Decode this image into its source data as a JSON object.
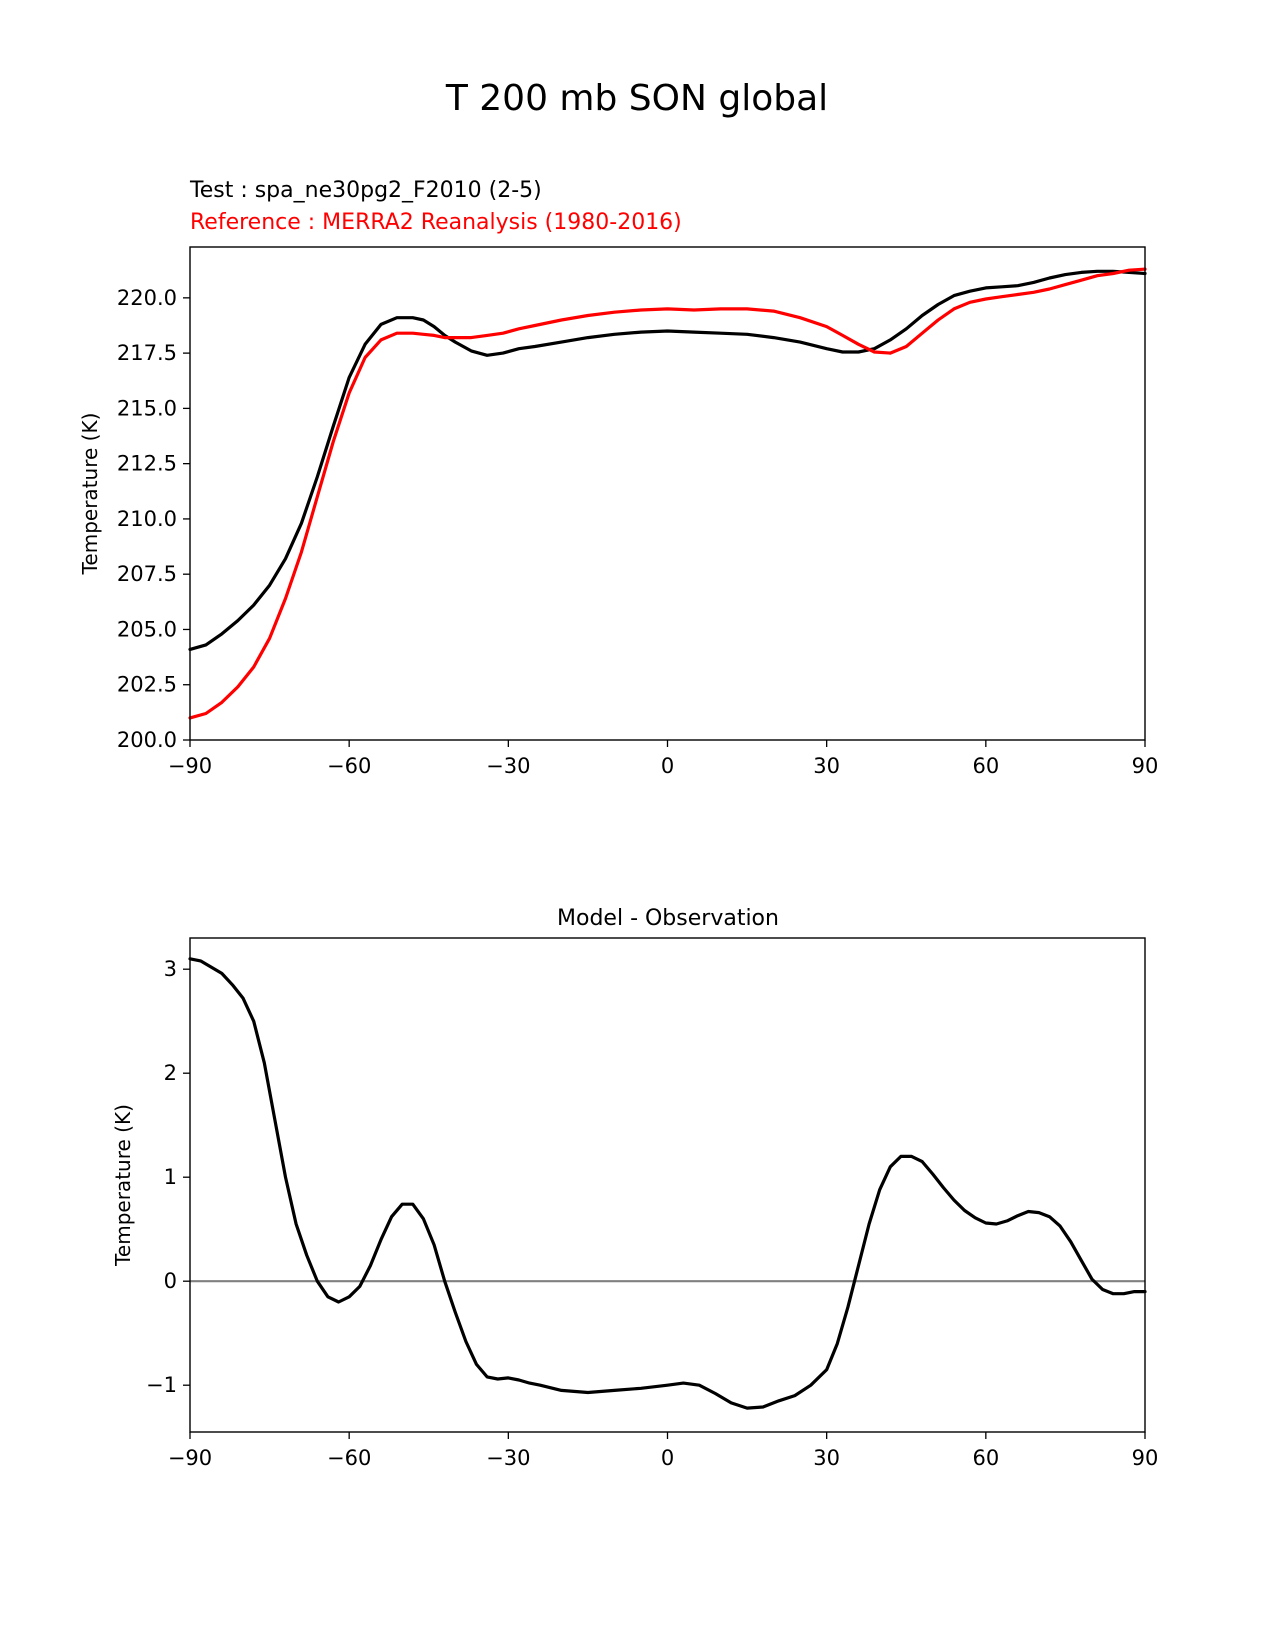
{
  "figure": {
    "suptitle": "T 200 mb SON global"
  },
  "chart_data": [
    {
      "type": "line",
      "test_label": "Test : spa_ne30pg2_F2010 (2-5)",
      "reference_label": "Reference : MERRA2 Reanalysis (1980-2016)",
      "ylabel": "Temperature (K)",
      "xlabel": "",
      "xlim": [
        -90,
        90
      ],
      "ylim": [
        200.0,
        222.3
      ],
      "xticks": [
        -90,
        -60,
        -30,
        0,
        30,
        60,
        90
      ],
      "xtick_labels": [
        "−90",
        "−60",
        "−30",
        "0",
        "30",
        "60",
        "90"
      ],
      "yticks": [
        200.0,
        202.5,
        205.0,
        207.5,
        210.0,
        212.5,
        215.0,
        217.5,
        220.0
      ],
      "ytick_labels": [
        "200.0",
        "202.5",
        "205.0",
        "207.5",
        "210.0",
        "212.5",
        "215.0",
        "217.5",
        "220.0"
      ],
      "grid": false,
      "series": [
        {
          "color": "#000000",
          "x": [
            -90,
            -87,
            -84,
            -81,
            -78,
            -75,
            -72,
            -69,
            -66,
            -63,
            -60,
            -57,
            -54,
            -51,
            -48,
            -46,
            -44,
            -42,
            -40,
            -37,
            -34,
            -31,
            -28,
            -25,
            -20,
            -15,
            -10,
            -5,
            0,
            5,
            10,
            15,
            20,
            25,
            30,
            33,
            36,
            39,
            42,
            45,
            48,
            51,
            54,
            57,
            60,
            63,
            66,
            69,
            72,
            75,
            78,
            81,
            84,
            87,
            90
          ],
          "y": [
            204.1,
            204.3,
            204.8,
            205.4,
            206.1,
            207.0,
            208.2,
            209.8,
            211.9,
            214.2,
            216.4,
            217.9,
            218.8,
            219.1,
            219.1,
            219.0,
            218.7,
            218.3,
            218.0,
            217.6,
            217.4,
            217.5,
            217.7,
            217.8,
            218.0,
            218.2,
            218.35,
            218.45,
            218.5,
            218.45,
            218.4,
            218.35,
            218.2,
            218.0,
            217.7,
            217.55,
            217.55,
            217.7,
            218.1,
            218.6,
            219.2,
            219.7,
            220.1,
            220.3,
            220.45,
            220.5,
            220.55,
            220.7,
            220.9,
            221.05,
            221.15,
            221.2,
            221.2,
            221.15,
            221.1
          ]
        },
        {
          "color": "#ff0000",
          "x": [
            -90,
            -87,
            -84,
            -81,
            -78,
            -75,
            -72,
            -69,
            -66,
            -63,
            -60,
            -57,
            -54,
            -51,
            -48,
            -46,
            -44,
            -42,
            -40,
            -37,
            -34,
            -31,
            -28,
            -25,
            -20,
            -15,
            -10,
            -5,
            0,
            5,
            10,
            15,
            20,
            25,
            30,
            33,
            36,
            39,
            42,
            45,
            48,
            51,
            54,
            57,
            60,
            63,
            66,
            69,
            72,
            75,
            78,
            81,
            84,
            87,
            90
          ],
          "y": [
            201.0,
            201.2,
            201.7,
            202.4,
            203.3,
            204.6,
            206.4,
            208.5,
            211.0,
            213.5,
            215.7,
            217.3,
            218.1,
            218.4,
            218.4,
            218.35,
            218.3,
            218.2,
            218.2,
            218.2,
            218.3,
            218.4,
            218.6,
            218.75,
            219.0,
            219.2,
            219.35,
            219.45,
            219.5,
            219.45,
            219.5,
            219.5,
            219.4,
            219.1,
            218.7,
            218.3,
            217.9,
            217.55,
            217.5,
            217.8,
            218.4,
            219.0,
            219.5,
            219.8,
            219.95,
            220.05,
            220.15,
            220.25,
            220.4,
            220.6,
            220.8,
            221.0,
            221.1,
            221.25,
            221.3
          ]
        }
      ]
    },
    {
      "type": "line",
      "title": "Model - Observation",
      "ylabel": "Temperature (K)",
      "xlabel": "",
      "xlim": [
        -90,
        90
      ],
      "ylim": [
        -1.45,
        3.3
      ],
      "xticks": [
        -90,
        -60,
        -30,
        0,
        30,
        60,
        90
      ],
      "xtick_labels": [
        "−90",
        "−60",
        "−30",
        "0",
        "30",
        "60",
        "90"
      ],
      "yticks": [
        -1,
        0,
        1,
        2,
        3
      ],
      "ytick_labels": [
        "−1",
        "0",
        "1",
        "2",
        "3"
      ],
      "zero_line": {
        "y": 0,
        "color": "#808080"
      },
      "grid": false,
      "series": [
        {
          "color": "#000000",
          "x": [
            -90,
            -88,
            -86,
            -84,
            -82,
            -80,
            -78,
            -76,
            -74,
            -72,
            -70,
            -68,
            -66,
            -64,
            -62,
            -60,
            -58,
            -56,
            -54,
            -52,
            -50,
            -48,
            -46,
            -44,
            -42,
            -40,
            -38,
            -36,
            -34,
            -32,
            -30,
            -28,
            -26,
            -24,
            -20,
            -15,
            -10,
            -5,
            0,
            3,
            6,
            9,
            12,
            15,
            18,
            21,
            24,
            27,
            30,
            32,
            34,
            36,
            38,
            40,
            42,
            44,
            46,
            48,
            50,
            52,
            54,
            56,
            58,
            60,
            62,
            64,
            66,
            68,
            70,
            72,
            74,
            76,
            78,
            80,
            82,
            84,
            86,
            88,
            90
          ],
          "y": [
            3.1,
            3.08,
            3.02,
            2.96,
            2.85,
            2.72,
            2.5,
            2.1,
            1.55,
            1.0,
            0.55,
            0.25,
            0.0,
            -0.15,
            -0.2,
            -0.15,
            -0.05,
            0.15,
            0.4,
            0.62,
            0.74,
            0.74,
            0.6,
            0.35,
            0.0,
            -0.3,
            -0.58,
            -0.8,
            -0.92,
            -0.94,
            -0.93,
            -0.95,
            -0.98,
            -1.0,
            -1.05,
            -1.07,
            -1.05,
            -1.03,
            -1.0,
            -0.98,
            -1.0,
            -1.08,
            -1.17,
            -1.22,
            -1.21,
            -1.15,
            -1.1,
            -1.0,
            -0.85,
            -0.6,
            -0.25,
            0.15,
            0.55,
            0.88,
            1.1,
            1.2,
            1.2,
            1.15,
            1.03,
            0.9,
            0.78,
            0.68,
            0.61,
            0.56,
            0.55,
            0.58,
            0.63,
            0.67,
            0.66,
            0.62,
            0.53,
            0.38,
            0.2,
            0.02,
            -0.08,
            -0.12,
            -0.12,
            -0.1,
            -0.1
          ]
        }
      ]
    }
  ]
}
